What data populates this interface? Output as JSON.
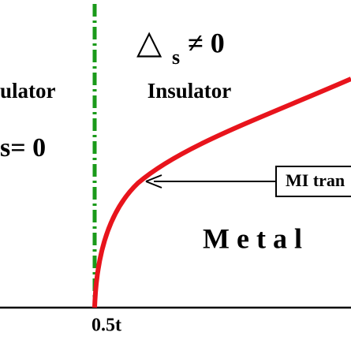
{
  "labels": {
    "gap_symbol": "△",
    "gap_subscript": "s",
    "gap_relation": "≠ 0",
    "left_insulator": "ulator",
    "right_insulator": "Insulator",
    "left_gap": "s= 0",
    "transition": "MI tran",
    "metal": "M e t a l",
    "x_tick": "0.5t"
  }
}
